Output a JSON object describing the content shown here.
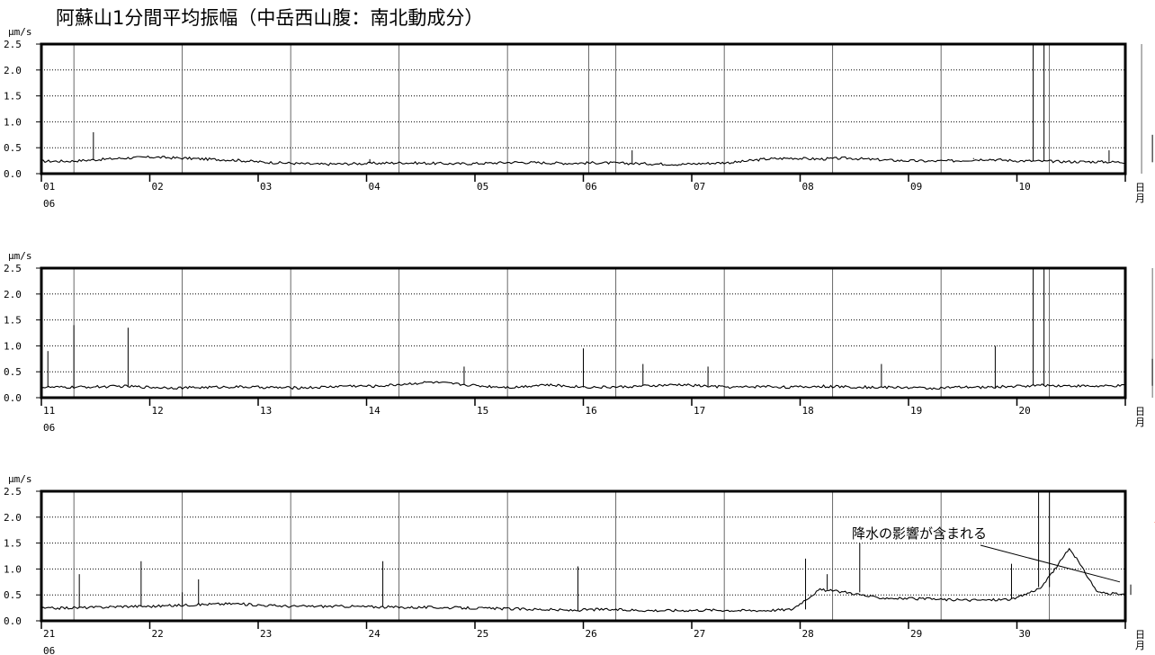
{
  "title": "阿蘇山1分間平均振幅（中岳西山腹：南北動成分）",
  "chart_data": {
    "type": "line",
    "unit": "μm/s",
    "ylim": [
      0,
      2.5
    ],
    "yticks": [
      "2.5",
      "2.0",
      "1.5",
      "1.0",
      "0.5",
      "0.0"
    ],
    "grid": "dotted horizontal at 0.5 steps",
    "day_label": "日",
    "month_label": "月",
    "month": "06",
    "panels": [
      {
        "days": [
          "01",
          "02",
          "03",
          "04",
          "05",
          "06",
          "07",
          "08",
          "09",
          "10"
        ],
        "baseline": [
          0.24,
          0.24,
          0.27,
          0.3,
          0.32,
          0.3,
          0.28,
          0.26,
          0.22,
          0.2,
          0.18,
          0.19,
          0.2,
          0.21,
          0.2,
          0.19,
          0.2,
          0.22,
          0.21,
          0.2,
          0.21,
          0.2,
          0.19,
          0.18,
          0.2,
          0.22,
          0.28,
          0.3,
          0.28,
          0.3,
          0.27,
          0.25,
          0.24,
          0.25,
          0.28,
          0.25,
          0.24,
          0.23,
          0.23,
          0.22
        ],
        "spikes": [
          [
            0.48,
            0.8
          ],
          [
            3.03,
            0.28
          ],
          [
            5.45,
            0.45
          ],
          [
            8.6,
            0.3
          ],
          [
            9.15,
            2.5
          ],
          [
            9.25,
            2.5
          ],
          [
            9.85,
            0.45
          ],
          [
            10.25,
            0.75
          ],
          [
            10.4,
            0.95
          ],
          [
            10.7,
            0.55
          ]
        ],
        "markers": [
          0.3,
          1.3,
          2.3,
          3.3,
          4.3,
          5.05,
          5.3,
          6.3,
          7.3,
          8.3,
          9.3,
          10.15,
          10.3
        ]
      },
      {
        "days": [
          "11",
          "12",
          "13",
          "14",
          "15",
          "16",
          "17",
          "18",
          "19",
          "20"
        ],
        "baseline": [
          0.2,
          0.2,
          0.21,
          0.22,
          0.2,
          0.19,
          0.2,
          0.21,
          0.2,
          0.19,
          0.2,
          0.23,
          0.22,
          0.26,
          0.3,
          0.26,
          0.22,
          0.2,
          0.25,
          0.22,
          0.2,
          0.21,
          0.23,
          0.25,
          0.22,
          0.2,
          0.22,
          0.2,
          0.22,
          0.21,
          0.2,
          0.2,
          0.18,
          0.2,
          0.2,
          0.22,
          0.24,
          0.23,
          0.22,
          0.23
        ],
        "spikes": [
          [
            0.06,
            0.9
          ],
          [
            0.3,
            1.4
          ],
          [
            0.8,
            1.35
          ],
          [
            3.9,
            0.6
          ],
          [
            5.0,
            0.95
          ],
          [
            5.55,
            0.65
          ],
          [
            6.15,
            0.6
          ],
          [
            7.75,
            0.65
          ],
          [
            8.8,
            1.0
          ],
          [
            9.15,
            2.5
          ],
          [
            9.25,
            2.5
          ],
          [
            10.25,
            0.75
          ],
          [
            10.35,
            0.6
          ]
        ],
        "markers": [
          0.3,
          1.3,
          2.3,
          3.3,
          4.3,
          5.3,
          6.3,
          7.3,
          8.3,
          9.3,
          10.25,
          10.3
        ]
      },
      {
        "days": [
          "21",
          "22",
          "23",
          "24",
          "25",
          "26",
          "27",
          "28",
          "29",
          "30"
        ],
        "baseline": [
          0.24,
          0.25,
          0.26,
          0.28,
          0.28,
          0.3,
          0.32,
          0.33,
          0.3,
          0.28,
          0.28,
          0.28,
          0.27,
          0.26,
          0.26,
          0.25,
          0.24,
          0.23,
          0.22,
          0.2,
          0.22,
          0.21,
          0.2,
          0.2,
          0.21,
          0.2,
          0.2,
          0.22,
          0.6,
          0.55,
          0.45,
          0.43,
          0.42,
          0.4,
          0.4,
          0.42,
          0.65,
          1.4,
          0.55,
          0.5
        ],
        "spikes": [
          [
            0.35,
            0.9
          ],
          [
            0.92,
            1.15
          ],
          [
            1.3,
            0.55
          ],
          [
            1.45,
            0.8
          ],
          [
            3.15,
            1.15
          ],
          [
            4.95,
            1.05
          ],
          [
            7.05,
            1.2
          ],
          [
            7.25,
            0.9
          ],
          [
            7.55,
            1.5
          ],
          [
            8.95,
            1.1
          ],
          [
            9.2,
            2.5
          ],
          [
            9.3,
            2.5
          ],
          [
            10.05,
            0.7
          ],
          [
            10.45,
            1.6
          ],
          [
            10.6,
            1.0
          ]
        ],
        "markers": [
          0.3,
          1.3,
          2.3,
          3.3,
          4.3,
          5.3,
          6.3,
          7.3,
          8.3,
          9.3,
          10.3
        ]
      }
    ],
    "annotations": [
      {
        "text": "降水の影響が含まれる",
        "panel": 3,
        "arrow_to_x": 9.95,
        "arrow_to_y": 0.75,
        "marker_x": 10.4,
        "marker_y": 1.8,
        "marker_color": "#ff3300"
      }
    ]
  }
}
